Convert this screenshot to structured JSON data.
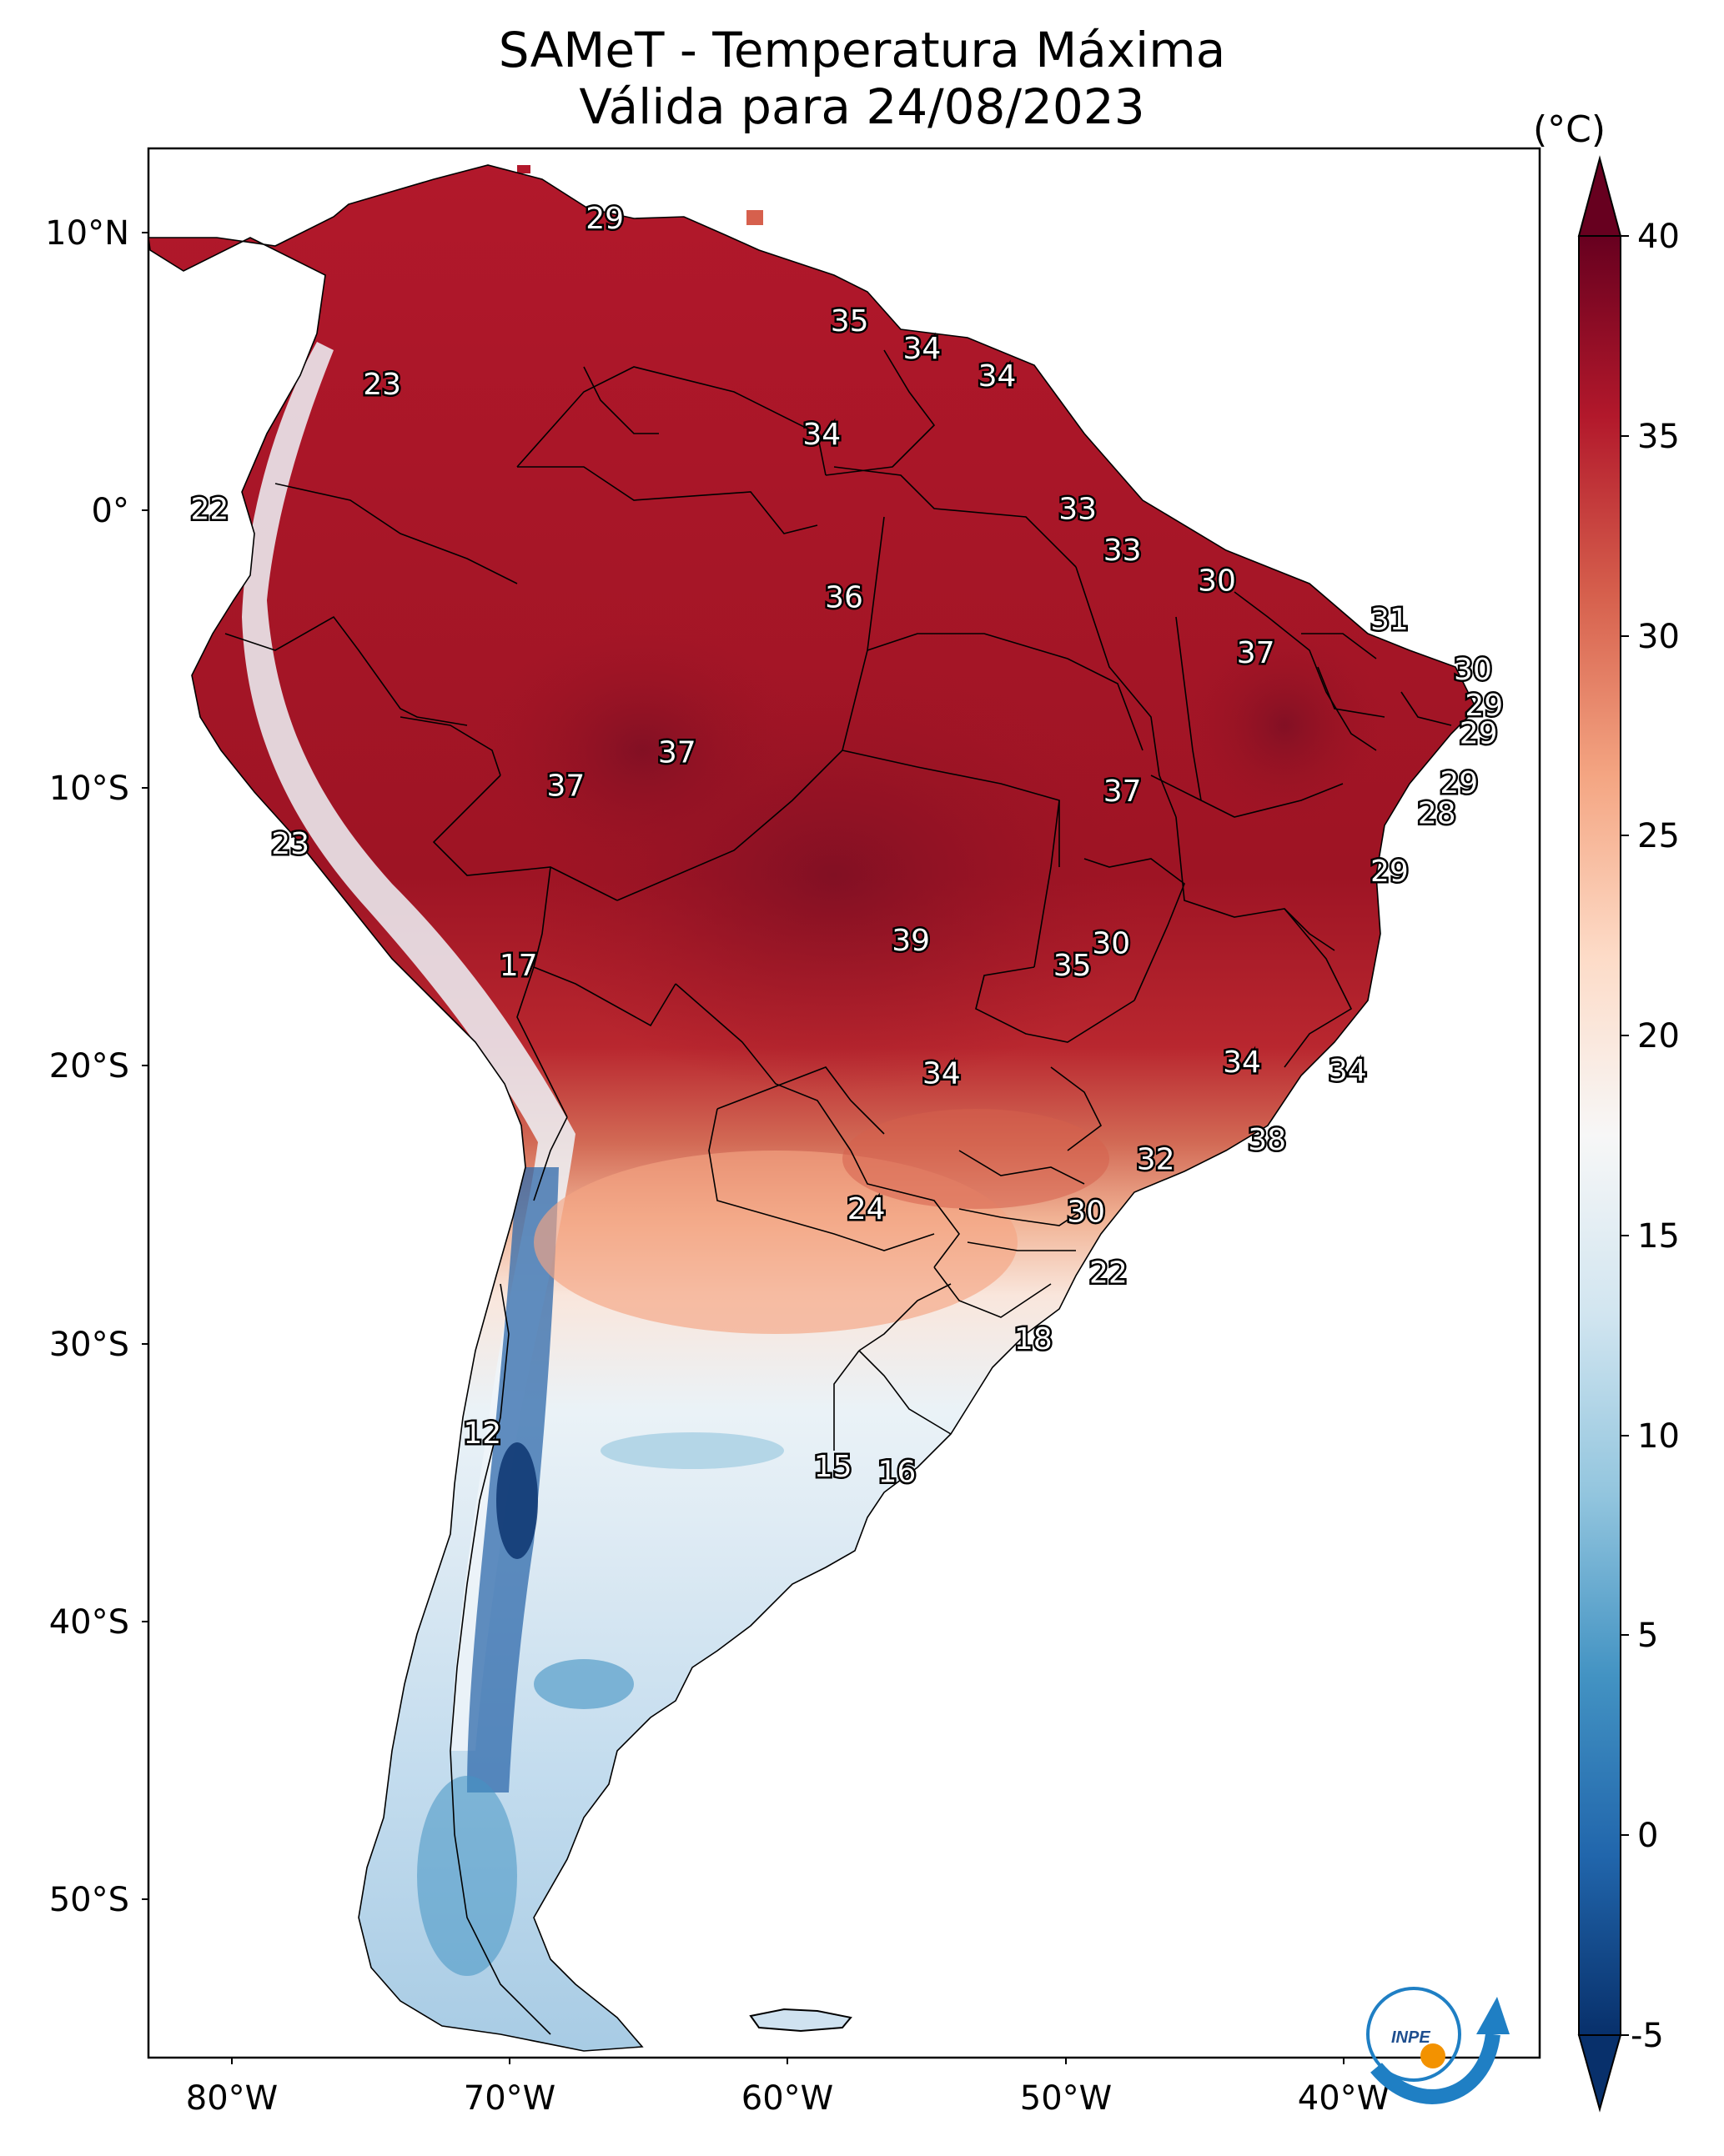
{
  "title": "SAMeT - Temperatura Máxima",
  "subtitle": "Válida para 24/08/2023",
  "colorbar": {
    "unit": "(°C)",
    "ticks": [
      "40",
      "35",
      "30",
      "25",
      "20",
      "15",
      "10",
      "5",
      "0",
      "-5"
    ],
    "range": [
      -5,
      40
    ],
    "colors": [
      "#08306b",
      "#2166ac",
      "#4393c3",
      "#92c5de",
      "#d1e5f0",
      "#f7f7f7",
      "#fddbc7",
      "#f4a582",
      "#d6604d",
      "#b2182b",
      "#67001f"
    ]
  },
  "axes": {
    "lat_labels": [
      "10°N",
      "0°",
      "10°S",
      "20°S",
      "30°S",
      "40°S",
      "50°S"
    ],
    "lon_labels": [
      "80°W",
      "70°W",
      "60°W",
      "50°W",
      "40°W"
    ]
  },
  "logo_text": "INPE",
  "chart_data": {
    "type": "heatmap",
    "title": "SAMeT - Temperatura Máxima",
    "subtitle": "Válida para 24/08/2023",
    "unit": "(°C)",
    "x_range_lon": [
      -83,
      -33
    ],
    "y_range_lat": [
      -56,
      13
    ],
    "value_labels": [
      {
        "lon": -66.6,
        "lat": 10.5,
        "value": 29
      },
      {
        "lon": -57.8,
        "lat": 6.8,
        "value": 35
      },
      {
        "lon": -55.2,
        "lat": 5.8,
        "value": 34
      },
      {
        "lon": -52.5,
        "lat": 4.8,
        "value": 34
      },
      {
        "lon": -74.6,
        "lat": 4.5,
        "value": 23
      },
      {
        "lon": -58.8,
        "lat": 2.7,
        "value": 34
      },
      {
        "lon": -49.6,
        "lat": 0.0,
        "value": 33
      },
      {
        "lon": -48.0,
        "lat": -1.5,
        "value": 33
      },
      {
        "lon": -44.6,
        "lat": -2.6,
        "value": 30
      },
      {
        "lon": -80.8,
        "lat": 0.0,
        "value": 22
      },
      {
        "lon": -58.0,
        "lat": -3.2,
        "value": 36
      },
      {
        "lon": -38.4,
        "lat": -4.0,
        "value": 31
      },
      {
        "lon": -43.2,
        "lat": -5.2,
        "value": 37
      },
      {
        "lon": -35.4,
        "lat": -5.8,
        "value": 30
      },
      {
        "lon": -35.0,
        "lat": -7.1,
        "value": 29
      },
      {
        "lon": -35.2,
        "lat": -8.1,
        "value": 29
      },
      {
        "lon": -64.0,
        "lat": -8.8,
        "value": 37
      },
      {
        "lon": -68.0,
        "lat": -10.0,
        "value": 37
      },
      {
        "lon": -48.0,
        "lat": -10.2,
        "value": 37
      },
      {
        "lon": -35.9,
        "lat": -9.9,
        "value": 29
      },
      {
        "lon": -36.7,
        "lat": -11.0,
        "value": 28
      },
      {
        "lon": -77.9,
        "lat": -12.1,
        "value": 23
      },
      {
        "lon": -38.4,
        "lat": -13.1,
        "value": 29
      },
      {
        "lon": -69.7,
        "lat": -16.5,
        "value": 17
      },
      {
        "lon": -55.6,
        "lat": -15.6,
        "value": 39
      },
      {
        "lon": -48.4,
        "lat": -15.7,
        "value": 30
      },
      {
        "lon": -49.8,
        "lat": -16.5,
        "value": 35
      },
      {
        "lon": -43.7,
        "lat": -20.0,
        "value": 34
      },
      {
        "lon": -39.9,
        "lat": -20.3,
        "value": 34
      },
      {
        "lon": -54.5,
        "lat": -20.4,
        "value": 34
      },
      {
        "lon": -42.8,
        "lat": -22.8,
        "value": 38
      },
      {
        "lon": -46.8,
        "lat": -23.5,
        "value": 32
      },
      {
        "lon": -57.2,
        "lat": -25.3,
        "value": 24
      },
      {
        "lon": -49.3,
        "lat": -25.4,
        "value": 30
      },
      {
        "lon": -48.5,
        "lat": -27.6,
        "value": 22
      },
      {
        "lon": -51.2,
        "lat": -30.0,
        "value": 18
      },
      {
        "lon": -71.0,
        "lat": -33.4,
        "value": 12
      },
      {
        "lon": -58.4,
        "lat": -34.6,
        "value": 15
      },
      {
        "lon": -56.1,
        "lat": -34.8,
        "value": 16
      }
    ],
    "colorbar_ticks": [
      40,
      35,
      30,
      25,
      20,
      15,
      10,
      5,
      0,
      -5
    ],
    "lat_ticks": [
      10,
      0,
      -10,
      -20,
      -30,
      -40,
      -50
    ],
    "lon_ticks": [
      -80,
      -70,
      -60,
      -50,
      -40
    ]
  }
}
